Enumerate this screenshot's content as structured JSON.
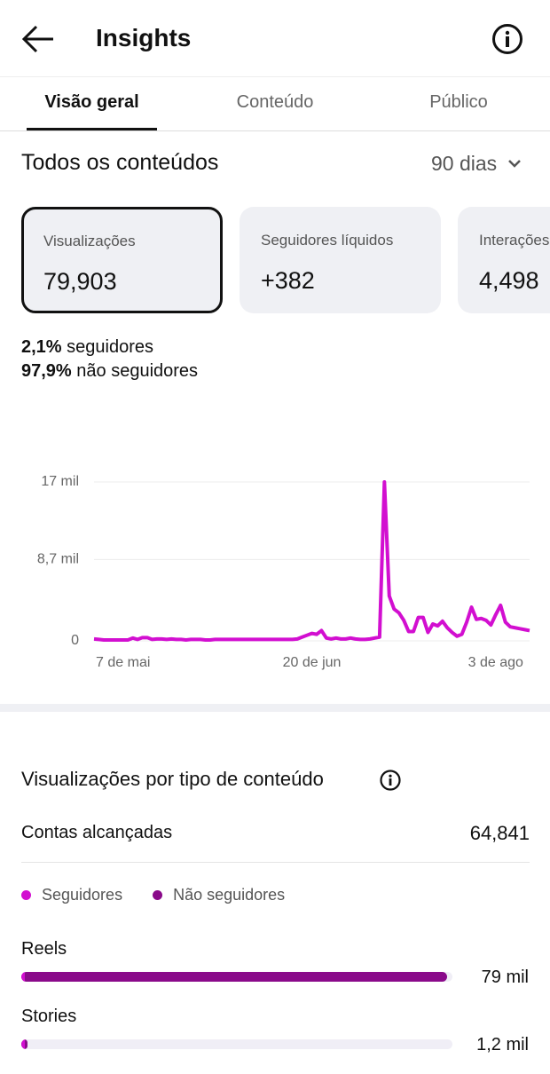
{
  "header": {
    "title": "Insights"
  },
  "tabs": [
    "Visão geral",
    "Conteúdo",
    "Público"
  ],
  "section": {
    "title": "Todos os conteúdos",
    "period": "90 dias"
  },
  "cards": [
    {
      "label": "Visualizações",
      "value": "79,903"
    },
    {
      "label": "Seguidores líquidos",
      "value": "+382"
    },
    {
      "label": "Interações",
      "value": "4,498"
    }
  ],
  "summary": [
    {
      "percent": "2,1%",
      "text": "seguidores"
    },
    {
      "percent": "97,9%",
      "text": "não seguidores"
    }
  ],
  "chart": {
    "type": "line",
    "color": "#d20fd0",
    "grid": true,
    "ylim": [
      0,
      17000
    ],
    "yticks": [
      0,
      {
        "value": 8700,
        "label": "8,7 mil"
      },
      {
        "value": 17000,
        "label": "17 mil"
      }
    ],
    "categories": [
      null,
      null,
      null,
      null,
      null,
      null,
      "7 de mai",
      null,
      null,
      null,
      null,
      null,
      null,
      null,
      null,
      null,
      null,
      null,
      null,
      null,
      null,
      null,
      null,
      null,
      null,
      null,
      null,
      null,
      null,
      null,
      null,
      null,
      null,
      null,
      null,
      null,
      null,
      null,
      null,
      null,
      null,
      null,
      null,
      null,
      null,
      "20 de jun",
      null,
      null,
      null,
      null,
      null,
      null,
      null,
      null,
      null,
      null,
      null,
      null,
      null,
      null,
      null,
      null,
      null,
      null,
      null,
      null,
      null,
      null,
      null,
      null,
      null,
      null,
      null,
      null,
      null,
      null,
      null,
      null,
      null,
      null,
      null,
      null,
      null,
      "3 de ago",
      null,
      null,
      null,
      null,
      null,
      null,
      null
    ],
    "values": [
      200,
      150,
      100,
      100,
      100,
      100,
      100,
      100,
      300,
      150,
      350,
      350,
      150,
      200,
      200,
      150,
      200,
      150,
      150,
      100,
      150,
      150,
      150,
      100,
      100,
      150,
      150,
      150,
      150,
      150,
      150,
      150,
      150,
      150,
      150,
      150,
      150,
      150,
      150,
      150,
      150,
      150,
      200,
      400,
      600,
      800,
      700,
      1100,
      300,
      200,
      300,
      200,
      200,
      300,
      200,
      150,
      150,
      200,
      300,
      400,
      17000,
      4800,
      3400,
      3000,
      2200,
      1000,
      1000,
      2500,
      2500,
      900,
      1800,
      1600,
      2100,
      1400,
      900,
      500,
      700,
      2000,
      3600,
      2300,
      2400,
      2200,
      1700,
      2800,
      3800,
      2000,
      1500,
      1400,
      1300,
      1200,
      1100
    ]
  },
  "breakdown": {
    "title": "Visualizações por tipo de conteúdo",
    "reached": {
      "label": "Contas alcançadas",
      "value": "64,841"
    },
    "legend": [
      {
        "name": "Seguidores",
        "color": "#d20fd0"
      },
      {
        "name": "Não seguidores",
        "color": "#8a0a8a"
      }
    ],
    "xlim": [
      0,
      80000
    ],
    "categories": [
      "Reels",
      "Stories"
    ],
    "values": [
      79000,
      1200
    ],
    "value_labels": [
      "79 mil",
      "1,2 mil"
    ]
  }
}
